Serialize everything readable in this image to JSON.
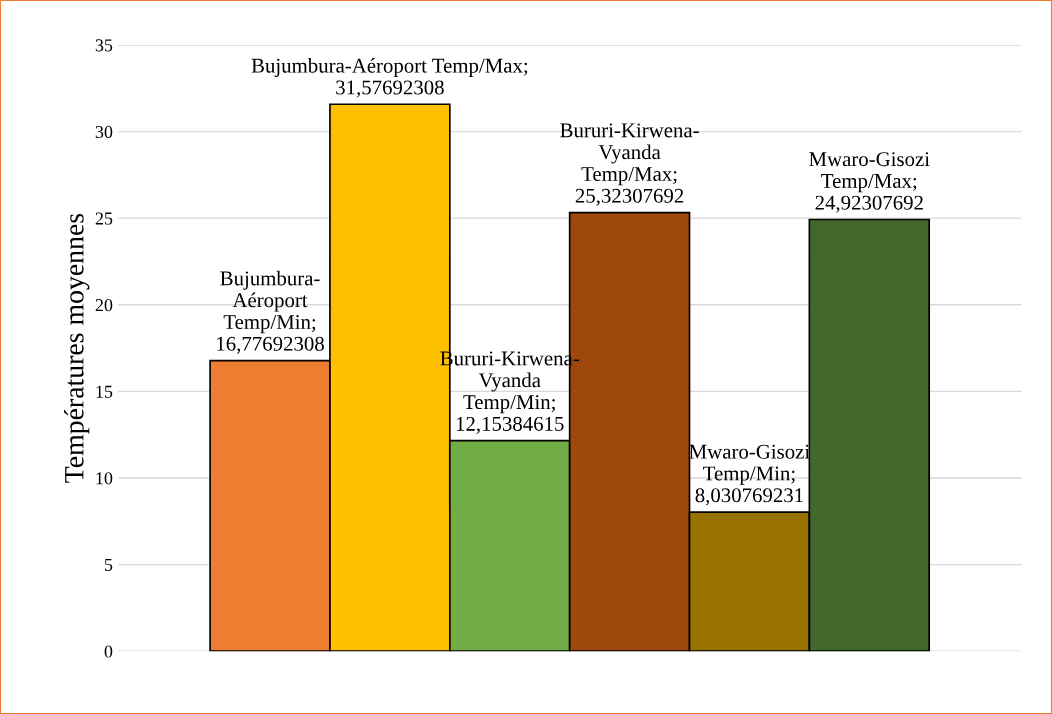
{
  "chart_data": {
    "type": "bar",
    "ylabel": "Températures moyennes",
    "categories": [
      null,
      null,
      null,
      null,
      null,
      null
    ],
    "values": [
      16.77692308,
      31.57692308,
      12.15384615,
      25.32307692,
      8.030769231,
      24.92307692
    ],
    "colors": [
      "#ed7d31",
      "#ffc000",
      "#70ad47",
      "#9e480e",
      "#997300",
      "#43682b"
    ],
    "value_labels": [
      "Bujumbura-\nAéroport\nTemp/Min;\n16,77692308",
      "Bujumbura-Aéroport Temp/Max;\n31,57692308",
      "Bururi-Kirwena-\nVyanda\nTemp/Min;\n12,15384615",
      "Bururi-Kirwena-\nVyanda\nTemp/Max;\n25,32307692",
      "Mwaro-Gisozi\nTemp/Min;\n8,030769231",
      "Mwaro-Gisozi\nTemp/Max;\n24,92307692"
    ],
    "ylim": [
      0,
      35
    ],
    "yticks": [
      0,
      5,
      10,
      15,
      20,
      25,
      30,
      35
    ],
    "grid": "y"
  }
}
